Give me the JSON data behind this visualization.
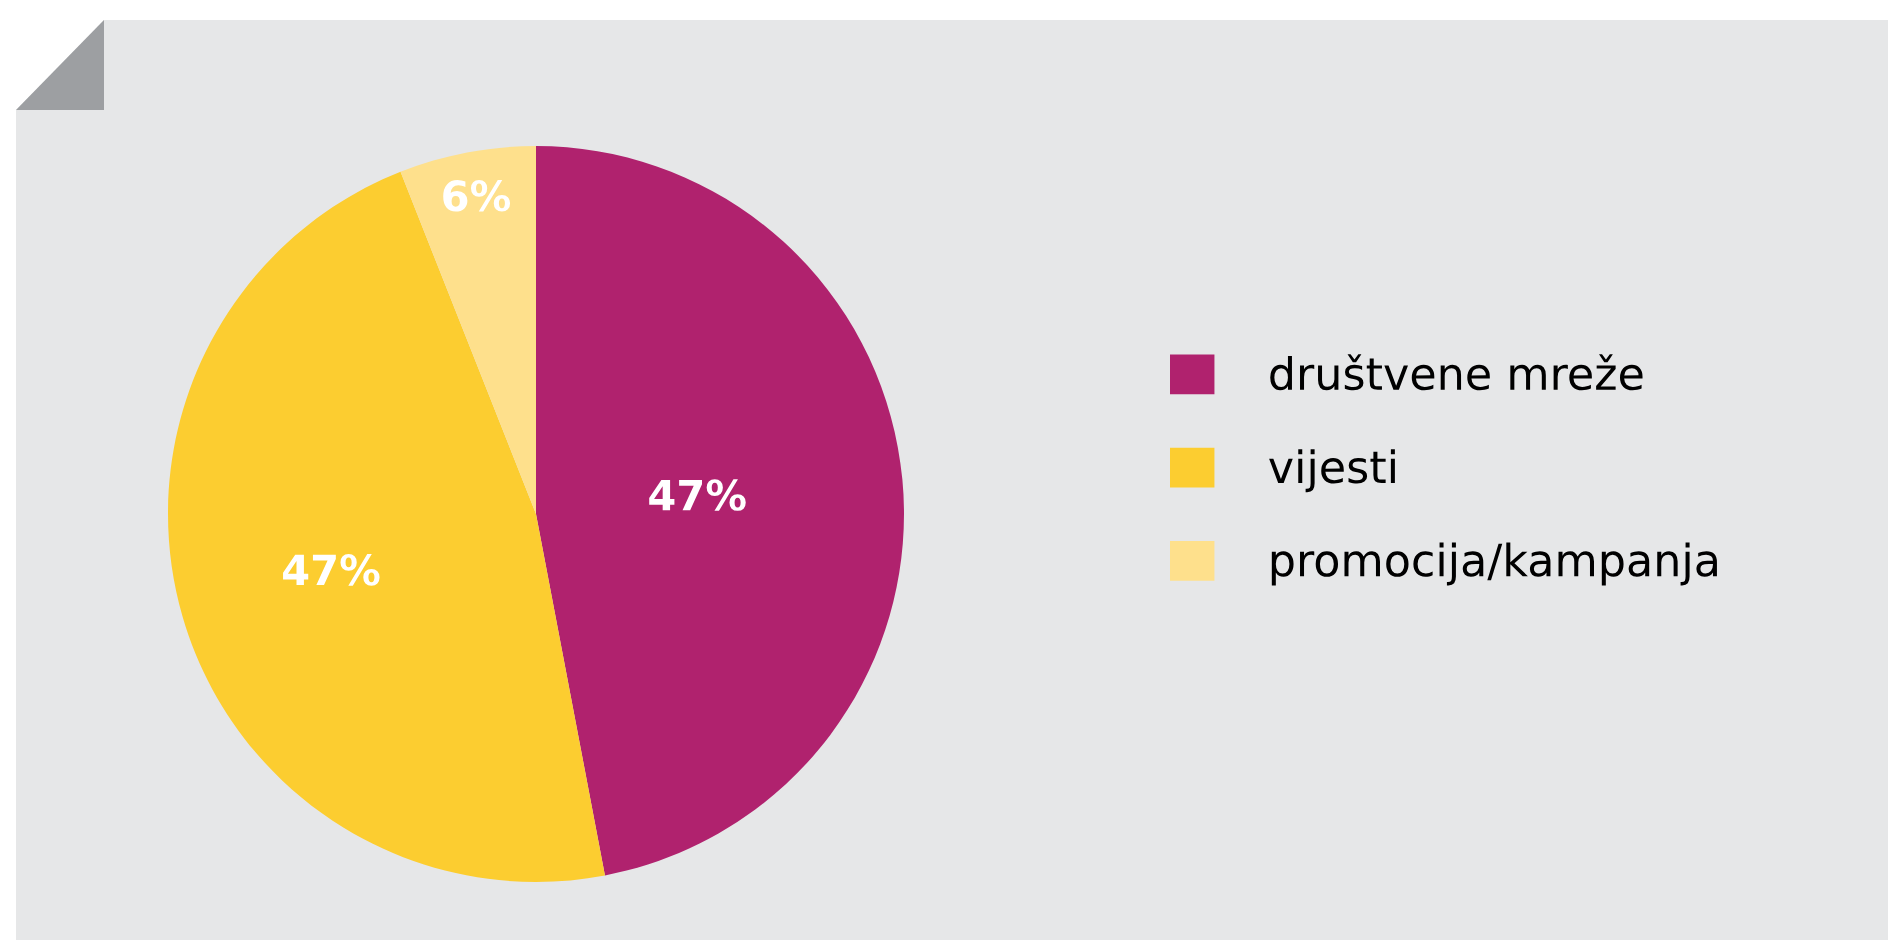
{
  "chart_data": {
    "type": "pie",
    "categories": [
      "društvene mreže",
      "vijesti",
      "promocija/kampanja"
    ],
    "values": [
      47,
      47,
      6
    ],
    "colors": [
      "#b0226e",
      "#fccd30",
      "#fee08c"
    ],
    "value_labels": [
      "47%",
      "47%",
      "6%"
    ],
    "legend": "right"
  }
}
